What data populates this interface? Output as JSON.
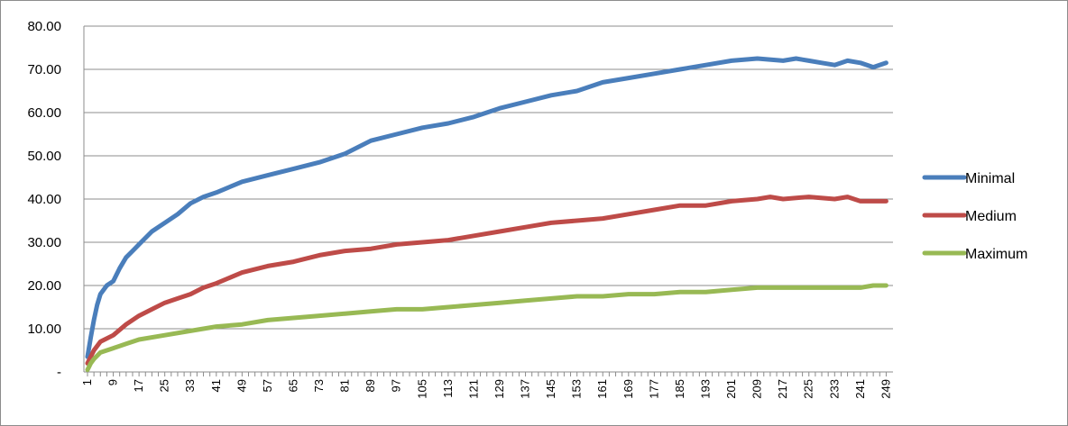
{
  "chart_data": {
    "type": "line",
    "title": "",
    "xlabel": "",
    "ylabel": "",
    "ylim": [
      0,
      80
    ],
    "y_ticks": [
      "-",
      "10.00",
      "20.00",
      "30.00",
      "40.00",
      "50.00",
      "60.00",
      "70.00",
      "80.00"
    ],
    "x_range": [
      1,
      250
    ],
    "x_ticks": [
      1,
      9,
      17,
      25,
      33,
      41,
      49,
      57,
      65,
      73,
      81,
      89,
      97,
      105,
      113,
      121,
      129,
      137,
      145,
      153,
      161,
      169,
      177,
      185,
      193,
      201,
      209,
      217,
      225,
      233,
      241,
      249
    ],
    "grid": "horizontal",
    "legend_position": "right",
    "series": [
      {
        "name": "Minimal",
        "color": "#4a7ebb",
        "x": [
          1,
          2,
          3,
          4,
          5,
          7,
          9,
          11,
          13,
          15,
          17,
          21,
          25,
          29,
          33,
          37,
          41,
          49,
          57,
          65,
          73,
          81,
          89,
          97,
          105,
          113,
          121,
          129,
          137,
          145,
          153,
          161,
          169,
          177,
          185,
          193,
          201,
          209,
          217,
          221,
          225,
          229,
          233,
          237,
          241,
          245,
          249
        ],
        "values": [
          3.5,
          8,
          12,
          15.5,
          18,
          20,
          21,
          24,
          26.5,
          28,
          29.5,
          32.5,
          34.5,
          36.5,
          39,
          40.5,
          41.5,
          44,
          45.5,
          47,
          48.5,
          50.5,
          53.5,
          55,
          56.5,
          57.5,
          59,
          61,
          62.5,
          64,
          65,
          67,
          68,
          69,
          70,
          71,
          72,
          72.5,
          72,
          72.5,
          72,
          71.5,
          71,
          72,
          71.5,
          70.5,
          71.5
        ]
      },
      {
        "name": "Medium",
        "color": "#be4b48",
        "x": [
          1,
          3,
          5,
          9,
          13,
          17,
          21,
          25,
          29,
          33,
          37,
          41,
          49,
          57,
          65,
          73,
          81,
          89,
          97,
          105,
          113,
          121,
          129,
          137,
          145,
          153,
          161,
          169,
          177,
          185,
          193,
          201,
          209,
          213,
          217,
          225,
          233,
          237,
          241,
          245,
          249
        ],
        "values": [
          2,
          5,
          7,
          8.5,
          11,
          13,
          14.5,
          16,
          17,
          18,
          19.5,
          20.5,
          23,
          24.5,
          25.5,
          27,
          28,
          28.5,
          29.5,
          30,
          30.5,
          31.5,
          32.5,
          33.5,
          34.5,
          35,
          35.5,
          36.5,
          37.5,
          38.5,
          38.5,
          39.5,
          40,
          40.5,
          40,
          40.5,
          40,
          40.5,
          39.5,
          39.5,
          39.5
        ]
      },
      {
        "name": "Maximum",
        "color": "#98b954",
        "x": [
          1,
          2,
          3,
          5,
          9,
          13,
          17,
          25,
          33,
          41,
          49,
          57,
          65,
          73,
          81,
          89,
          97,
          105,
          113,
          121,
          129,
          137,
          145,
          153,
          161,
          169,
          177,
          185,
          193,
          201,
          209,
          217,
          225,
          233,
          241,
          245,
          249
        ],
        "values": [
          0.5,
          2,
          3,
          4.5,
          5.5,
          6.5,
          7.5,
          8.5,
          9.5,
          10.5,
          11,
          12,
          12.5,
          13,
          13.5,
          14,
          14.5,
          14.5,
          15,
          15.5,
          16,
          16.5,
          17,
          17.5,
          17.5,
          18,
          18,
          18.5,
          18.5,
          19,
          19.5,
          19.5,
          19.5,
          19.5,
          19.5,
          20,
          20
        ]
      }
    ]
  }
}
